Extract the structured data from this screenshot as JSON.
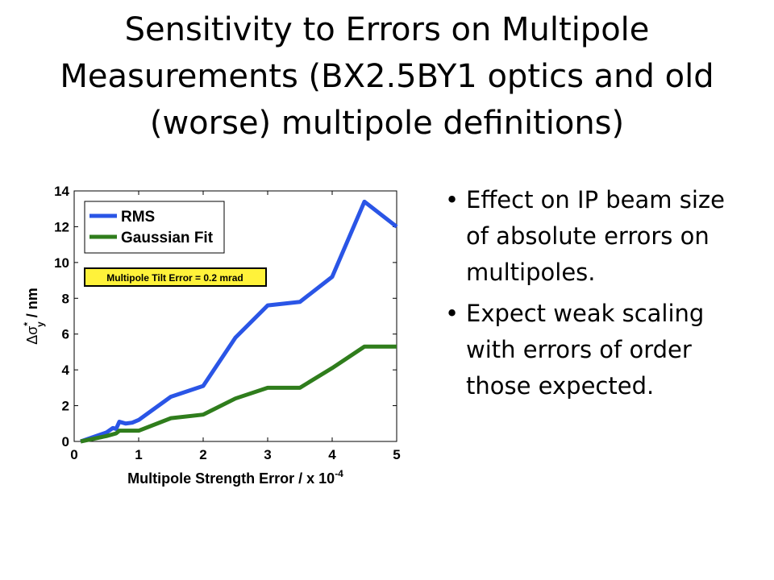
{
  "title": "Sensitivity to Errors on Multipole Measurements (BX2.5BY1 optics and old (worse) multipole definitions)",
  "bullets": [
    "Effect on IP beam size of absolute errors on multipoles.",
    "Expect weak scaling with errors of order those expected."
  ],
  "chart_data": {
    "type": "line",
    "x": [
      0.1,
      0.5,
      0.6,
      0.65,
      0.7,
      0.8,
      0.9,
      1.0,
      1.5,
      2.0,
      2.5,
      3.0,
      3.5,
      4.0,
      4.5,
      5.0
    ],
    "series": [
      {
        "name": "RMS",
        "color": "#2a55e6",
        "values": [
          0,
          0.5,
          0.75,
          0.7,
          1.1,
          1.0,
          1.05,
          1.2,
          2.5,
          3.1,
          5.8,
          7.6,
          7.8,
          9.2,
          13.4,
          12.0
        ]
      },
      {
        "name": "Gaussian Fit",
        "color": "#2f7d1c",
        "values": [
          0,
          0.3,
          0.4,
          0.45,
          0.6,
          0.6,
          0.6,
          0.6,
          1.3,
          1.5,
          2.4,
          3.0,
          3.0,
          4.1,
          5.3,
          5.3
        ]
      }
    ],
    "xlabel": {
      "text": "Multipole Strength Error / x 10",
      "sup": "-4"
    },
    "ylabel": {
      "symbol": "Δσ",
      "sup": "*",
      "sub": "y",
      "unit": " / nm"
    },
    "annotation": "Multipole Tilt Error = 0.2 mrad",
    "xlim": [
      0,
      5
    ],
    "xticks": [
      0,
      1,
      2,
      3,
      4,
      5
    ],
    "ylim": [
      0,
      14
    ],
    "yticks": [
      0,
      2,
      4,
      6,
      8,
      10,
      12,
      14
    ],
    "legend": "upper left"
  }
}
